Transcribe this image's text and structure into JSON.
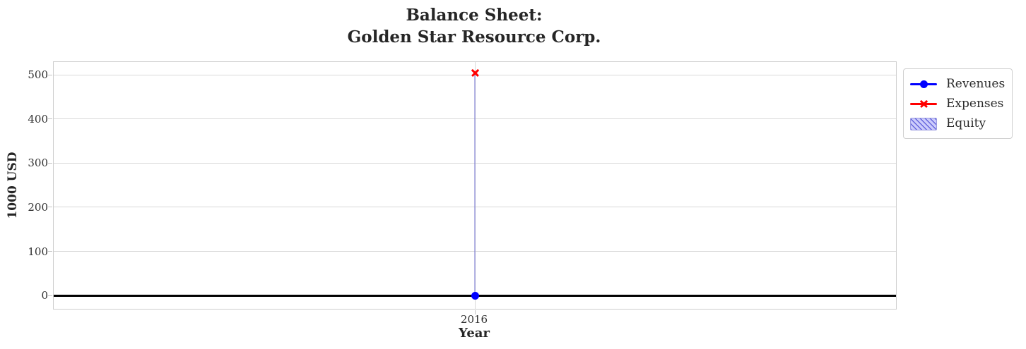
{
  "title": {
    "line1": "Balance Sheet:",
    "line2": "Golden Star Resource Corp."
  },
  "axes": {
    "ylabel": "1000 USD",
    "xlabel": "Year",
    "yticklabels": [
      "0",
      "100",
      "200",
      "300",
      "400",
      "500"
    ],
    "xticklabels": [
      "2016"
    ]
  },
  "legend": {
    "items": [
      {
        "label": "Revenues",
        "type": "line-circle",
        "color": "#0000ff"
      },
      {
        "label": "Expenses",
        "type": "line-x",
        "color": "#ff0000"
      },
      {
        "label": "Equity",
        "type": "hatch-patch",
        "fill": "#ccccfb",
        "hatch": "#6666dd",
        "edge": "#9a9ae0"
      }
    ]
  },
  "chart_data": {
    "type": "line",
    "title": "Balance Sheet:\nGolden Star Resource Corp.",
    "xlabel": "Year",
    "ylabel": "1000 USD",
    "x": [
      2016
    ],
    "series": [
      {
        "name": "Revenues",
        "type": "line",
        "marker": "circle",
        "color": "#0000ff",
        "values": [
          0
        ]
      },
      {
        "name": "Expenses",
        "type": "line",
        "marker": "x",
        "color": "#ff0000",
        "values": [
          505
        ]
      },
      {
        "name": "Equity",
        "type": "area",
        "fill": "#ccccfb",
        "edge": "rgba(120,120,210,0.55)",
        "values": [
          505
        ],
        "note": "single-x area collapses to a vertical hatched-edge line from 0 to 505 at x=2016"
      }
    ],
    "yticks": [
      0,
      100,
      200,
      300,
      400,
      500
    ],
    "ylim": [
      -30,
      529
    ],
    "xlim": [
      2015.5,
      2016.5
    ],
    "grid": true,
    "zero_line_color": "#000000",
    "grid_color": "#d8d8d8",
    "legend_position": "outside-upper-right"
  }
}
